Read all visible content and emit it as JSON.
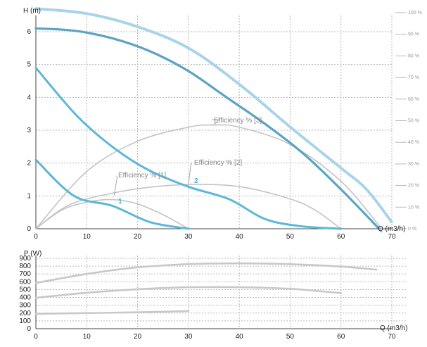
{
  "colors": {
    "head_curve": "#5ab8d8",
    "head_curve_max": "#5aa3c3",
    "envelope": "#a8d4ea",
    "efficiency_curve": "#c4c4c4",
    "power_curve": "#c8c8c8",
    "grid": "#b8b8b8",
    "label_1": "#3fb2db",
    "label_2": "#3fb2db"
  },
  "chart_data": [
    {
      "type": "line",
      "xlabel": "Q (m3/h)",
      "ylabel": "H (m)",
      "xlim": [
        0,
        70
      ],
      "ylim": [
        0,
        6.5
      ],
      "xticks": [
        0,
        10,
        20,
        30,
        40,
        50,
        60,
        70
      ],
      "yticks": [
        0,
        1,
        2,
        3,
        4,
        5,
        6
      ],
      "y2ticks": [
        "0 %",
        "10 %",
        "20 %",
        "30 %",
        "40 %",
        "50 %",
        "60 %",
        "70 %",
        "80 %",
        "90 %",
        "100 %"
      ],
      "y2lim": [
        0,
        100
      ],
      "grid": true,
      "curve_labels": [
        "1",
        "2"
      ],
      "series": [
        {
          "key": "h1",
          "axis": "left",
          "x": [
            0,
            7.5,
            15,
            22.5,
            30
          ],
          "values": [
            2.1,
            1.0,
            0.7,
            0.2,
            0.0
          ]
        },
        {
          "key": "h2",
          "axis": "left",
          "x": [
            0,
            8,
            15,
            22,
            30,
            38,
            45,
            52,
            60
          ],
          "values": [
            4.9,
            3.45,
            2.5,
            1.8,
            1.28,
            0.9,
            0.3,
            0.08,
            0.0
          ]
        },
        {
          "key": "h3",
          "axis": "left",
          "x": [
            0,
            7.5,
            15,
            22.5,
            30,
            37.5,
            45,
            52.5,
            60,
            67.5
          ],
          "values": [
            6.1,
            6.03,
            5.8,
            5.4,
            4.8,
            4.0,
            3.2,
            2.3,
            1.2,
            0.0
          ]
        },
        {
          "key": "envelope",
          "axis": "left",
          "x": [
            0,
            10,
            20,
            30,
            40,
            50,
            60,
            65,
            70
          ],
          "values": [
            6.7,
            6.55,
            6.15,
            5.5,
            4.4,
            3.1,
            1.85,
            1.2,
            0.2
          ]
        },
        {
          "key": "eff1",
          "name": "Efficiency % [1]",
          "axis": "right",
          "x": [
            0,
            5,
            10,
            15,
            20,
            25,
            30
          ],
          "values": [
            0,
            8.5,
            12.3,
            13.5,
            11.5,
            6.5,
            0
          ]
        },
        {
          "key": "eff2",
          "name": "Efficiency % [2]",
          "axis": "right",
          "x": [
            0,
            5,
            10,
            20,
            30,
            40,
            50,
            55,
            60
          ],
          "values": [
            0,
            9,
            13.8,
            18.5,
            20.5,
            19.5,
            13.8,
            8.5,
            0
          ]
        },
        {
          "key": "eff3",
          "name": "Efficiency % [3]",
          "axis": "right",
          "x": [
            0,
            10,
            20,
            30,
            35,
            40,
            50,
            60,
            68
          ],
          "values": [
            0,
            26.5,
            40.5,
            47,
            48,
            47,
            39,
            22,
            0
          ]
        }
      ],
      "annotations": [
        {
          "text": "Efficiency % [1]",
          "series": "eff1"
        },
        {
          "text": "Efficiency % [2]",
          "series": "eff2"
        },
        {
          "text": "Efficiency % [3]",
          "series": "eff3"
        }
      ]
    },
    {
      "type": "line",
      "xlabel": "Q (m3/h)",
      "ylabel": "P (W)",
      "xlim": [
        0,
        70
      ],
      "ylim": [
        0,
        900
      ],
      "xticks": [
        0,
        10,
        20,
        30,
        40,
        50,
        60,
        70
      ],
      "yticks": [
        0,
        100,
        200,
        300,
        400,
        500,
        600,
        700,
        800,
        900
      ],
      "grid": true,
      "series": [
        {
          "key": "p1",
          "x": [
            0,
            10,
            20,
            30
          ],
          "values": [
            190,
            200,
            210,
            225
          ]
        },
        {
          "key": "p2",
          "x": [
            0,
            10,
            20,
            30,
            40,
            50,
            60
          ],
          "values": [
            395,
            460,
            505,
            530,
            530,
            510,
            455
          ]
        },
        {
          "key": "p3",
          "x": [
            0,
            10,
            20,
            30,
            40,
            50,
            60,
            67
          ],
          "values": [
            585,
            700,
            785,
            825,
            835,
            825,
            795,
            755
          ]
        }
      ]
    }
  ]
}
